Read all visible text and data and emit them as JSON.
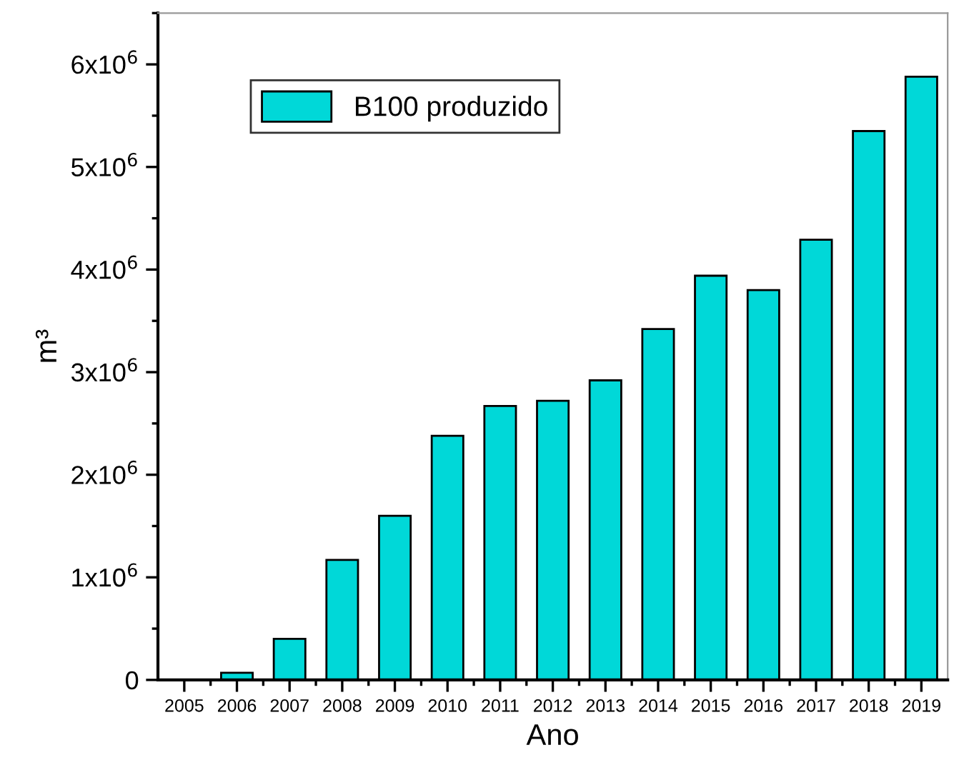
{
  "chart_data": {
    "type": "bar",
    "xlabel": "Ano",
    "ylabel": "m³",
    "categories": [
      "2005",
      "2006",
      "2007",
      "2008",
      "2009",
      "2010",
      "2011",
      "2012",
      "2013",
      "2014",
      "2015",
      "2016",
      "2017",
      "2018",
      "2019"
    ],
    "series": [
      {
        "name": "B100 produzido",
        "color": "#00d8d8",
        "values": [
          null,
          70000,
          400000,
          1170000,
          1600000,
          2380000,
          2670000,
          2720000,
          2920000,
          3420000,
          3940000,
          3800000,
          4290000,
          5350000,
          5880000
        ]
      }
    ],
    "ylim": [
      0,
      6500000
    ],
    "yticks": [
      {
        "value": 0,
        "label": "0"
      },
      {
        "value": 1000000,
        "label": "1x10$^{6}$"
      },
      {
        "value": 2000000,
        "label": "2x10$^{6}$"
      },
      {
        "value": 3000000,
        "label": "3x10$^{6}$"
      },
      {
        "value": 4000000,
        "label": "4x10$^{6}$"
      },
      {
        "value": 5000000,
        "label": "5x10$^{6}$"
      },
      {
        "value": 6000000,
        "label": "6x10$^{6}$"
      }
    ],
    "legend": "top left",
    "grid": false
  }
}
